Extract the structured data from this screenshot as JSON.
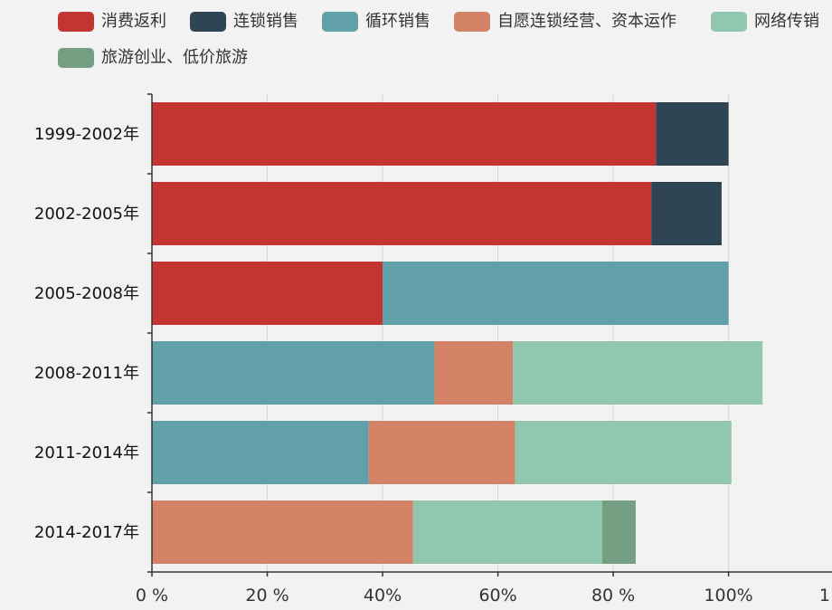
{
  "chart_data": {
    "type": "bar",
    "orientation": "horizontal",
    "stacked": true,
    "categories": [
      "1999-2002年",
      "2002-2005年",
      "2005-2008年",
      "2008-2011年",
      "2011-2014年",
      "2014-2017年"
    ],
    "series": [
      {
        "name": "消费返利",
        "color": "#c23531",
        "values": [
          87.4,
          86.6,
          40,
          0,
          0,
          0
        ]
      },
      {
        "name": "连锁销售",
        "color": "#2f4554",
        "values": [
          12.6,
          12.2,
          0,
          0,
          0,
          0
        ]
      },
      {
        "name": "循环销售",
        "color": "#61a0a8",
        "values": [
          0,
          0,
          60,
          49,
          37.6,
          0
        ]
      },
      {
        "name": "自愿连锁经营、资本运作",
        "color": "#d48265",
        "values": [
          0,
          0,
          0,
          13.6,
          25.4,
          45.3
        ]
      },
      {
        "name": "网络传销",
        "color": "#91c7ae",
        "values": [
          0,
          0,
          0,
          43.3,
          37.5,
          32.8
        ]
      },
      {
        "name": "旅游创业、低价旅游",
        "color": "#749f83",
        "values": [
          0,
          0,
          0,
          0,
          0,
          5.8
        ]
      }
    ],
    "xlim": [
      0,
      120
    ],
    "xticks": [
      "0 %",
      "20 %",
      "40%",
      "60%",
      "80 %",
      "100%",
      "1"
    ],
    "grid": true,
    "legend_position": "top"
  }
}
